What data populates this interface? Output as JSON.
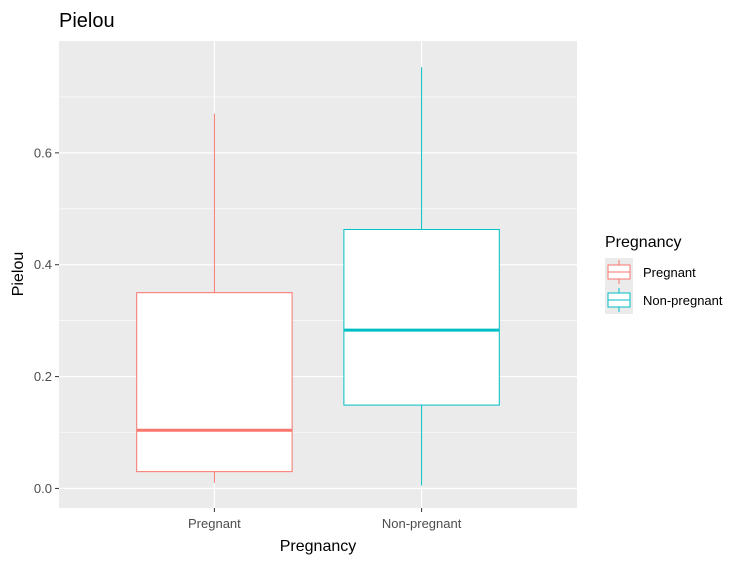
{
  "chart_data": {
    "type": "boxplot",
    "title": "Pielou",
    "xlabel": "Pregnancy",
    "ylabel": "Pielou",
    "ylim": [
      -0.035,
      0.8
    ],
    "yticks": [
      0.0,
      0.2,
      0.4,
      0.6
    ],
    "ytick_labels": [
      "0.0",
      "0.2",
      "0.4",
      "0.6"
    ],
    "categories": [
      "Pregnant",
      "Non-pregnant"
    ],
    "boxes": [
      {
        "name": "Pregnant",
        "whisker_low": 0.01,
        "q1": 0.03,
        "median": 0.104,
        "q3": 0.35,
        "whisker_high": 0.67,
        "color": "#F8766D"
      },
      {
        "name": "Non-pregnant",
        "whisker_low": 0.005,
        "q1": 0.149,
        "median": 0.283,
        "q3": 0.463,
        "whisker_high": 0.753,
        "color": "#00BFC4"
      }
    ],
    "legend": {
      "title": "Pregnancy",
      "placement": "right",
      "items": [
        {
          "label": "Pregnant",
          "color": "#F8766D"
        },
        {
          "label": "Non-pregnant",
          "color": "#00BFC4"
        }
      ]
    },
    "grid": true,
    "panel_background": "#EBEBEB"
  }
}
